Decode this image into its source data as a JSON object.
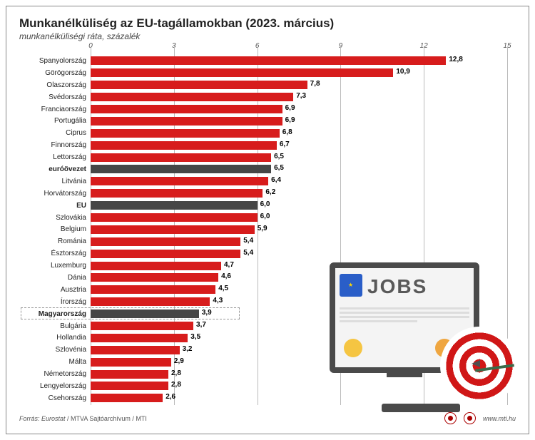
{
  "title": "Munkanélküliség az EU-tagállamokban (2023. március)",
  "subtitle": "munkanélküliségi ráta, százalék",
  "chart": {
    "type": "bar",
    "orientation": "horizontal",
    "xlim": [
      0,
      15
    ],
    "xticks": [
      0,
      3,
      6,
      9,
      12,
      15
    ],
    "bar_color_default": "#d71c1c",
    "bar_color_aggregate": "#464646",
    "grid_color": "#bbbbbb",
    "background_color": "#ffffff",
    "label_fontsize": 10,
    "value_fontsize": 10,
    "title_fontsize": 17,
    "subtitle_fontsize": 12,
    "rows": [
      {
        "label": "Spanyolország",
        "value": 12.8,
        "display": "12,8",
        "bold": false,
        "aggregate": false
      },
      {
        "label": "Görögország",
        "value": 10.9,
        "display": "10,9",
        "bold": false,
        "aggregate": false
      },
      {
        "label": "Olaszország",
        "value": 7.8,
        "display": "7,8",
        "bold": false,
        "aggregate": false
      },
      {
        "label": "Svédország",
        "value": 7.3,
        "display": "7,3",
        "bold": false,
        "aggregate": false
      },
      {
        "label": "Franciaország",
        "value": 6.9,
        "display": "6,9",
        "bold": false,
        "aggregate": false
      },
      {
        "label": "Portugália",
        "value": 6.9,
        "display": "6,9",
        "bold": false,
        "aggregate": false
      },
      {
        "label": "Ciprus",
        "value": 6.8,
        "display": "6,8",
        "bold": false,
        "aggregate": false
      },
      {
        "label": "Finnország",
        "value": 6.7,
        "display": "6,7",
        "bold": false,
        "aggregate": false
      },
      {
        "label": "Lettország",
        "value": 6.5,
        "display": "6,5",
        "bold": false,
        "aggregate": false
      },
      {
        "label": "euróövezet",
        "value": 6.5,
        "display": "6,5",
        "bold": true,
        "aggregate": true
      },
      {
        "label": "Litvánia",
        "value": 6.4,
        "display": "6,4",
        "bold": false,
        "aggregate": false
      },
      {
        "label": "Horvátország",
        "value": 6.2,
        "display": "6,2",
        "bold": false,
        "aggregate": false
      },
      {
        "label": "EU",
        "value": 6.0,
        "display": "6,0",
        "bold": true,
        "aggregate": true
      },
      {
        "label": "Szlovákia",
        "value": 6.0,
        "display": "6,0",
        "bold": false,
        "aggregate": false
      },
      {
        "label": "Belgium",
        "value": 5.9,
        "display": "5,9",
        "bold": false,
        "aggregate": false
      },
      {
        "label": "Románia",
        "value": 5.4,
        "display": "5,4",
        "bold": false,
        "aggregate": false
      },
      {
        "label": "Észtország",
        "value": 5.4,
        "display": "5,4",
        "bold": false,
        "aggregate": false
      },
      {
        "label": "Luxemburg",
        "value": 4.7,
        "display": "4,7",
        "bold": false,
        "aggregate": false
      },
      {
        "label": "Dánia",
        "value": 4.6,
        "display": "4,6",
        "bold": false,
        "aggregate": false
      },
      {
        "label": "Ausztria",
        "value": 4.5,
        "display": "4,5",
        "bold": false,
        "aggregate": false
      },
      {
        "label": "Írország",
        "value": 4.3,
        "display": "4,3",
        "bold": false,
        "aggregate": false
      },
      {
        "label": "Magyarország",
        "value": 3.9,
        "display": "3,9",
        "bold": true,
        "aggregate": true,
        "highlight": true
      },
      {
        "label": "Bulgária",
        "value": 3.7,
        "display": "3,7",
        "bold": false,
        "aggregate": false
      },
      {
        "label": "Hollandia",
        "value": 3.5,
        "display": "3,5",
        "bold": false,
        "aggregate": false
      },
      {
        "label": "Szlovénia",
        "value": 3.2,
        "display": "3,2",
        "bold": false,
        "aggregate": false
      },
      {
        "label": "Málta",
        "value": 2.9,
        "display": "2,9",
        "bold": false,
        "aggregate": false
      },
      {
        "label": "Németország",
        "value": 2.8,
        "display": "2,8",
        "bold": false,
        "aggregate": false
      },
      {
        "label": "Lengyelország",
        "value": 2.8,
        "display": "2,8",
        "bold": false,
        "aggregate": false
      },
      {
        "label": "Csehország",
        "value": 2.6,
        "display": "2,6",
        "bold": false,
        "aggregate": false
      }
    ]
  },
  "illustration": {
    "jobs_text": "JOBS",
    "monitor_border": "#4a4a4a",
    "screen_bg": "#f4f4f4",
    "eu_flag_bg": "#2a5ec8",
    "target_red": "#d01717",
    "target_white": "#ffffff"
  },
  "footer": {
    "source_prefix": "Forrás: Eurostat",
    "source_rest": " / MTVA Sajtóarchívum / MTI",
    "url": "www.mti.hu"
  }
}
